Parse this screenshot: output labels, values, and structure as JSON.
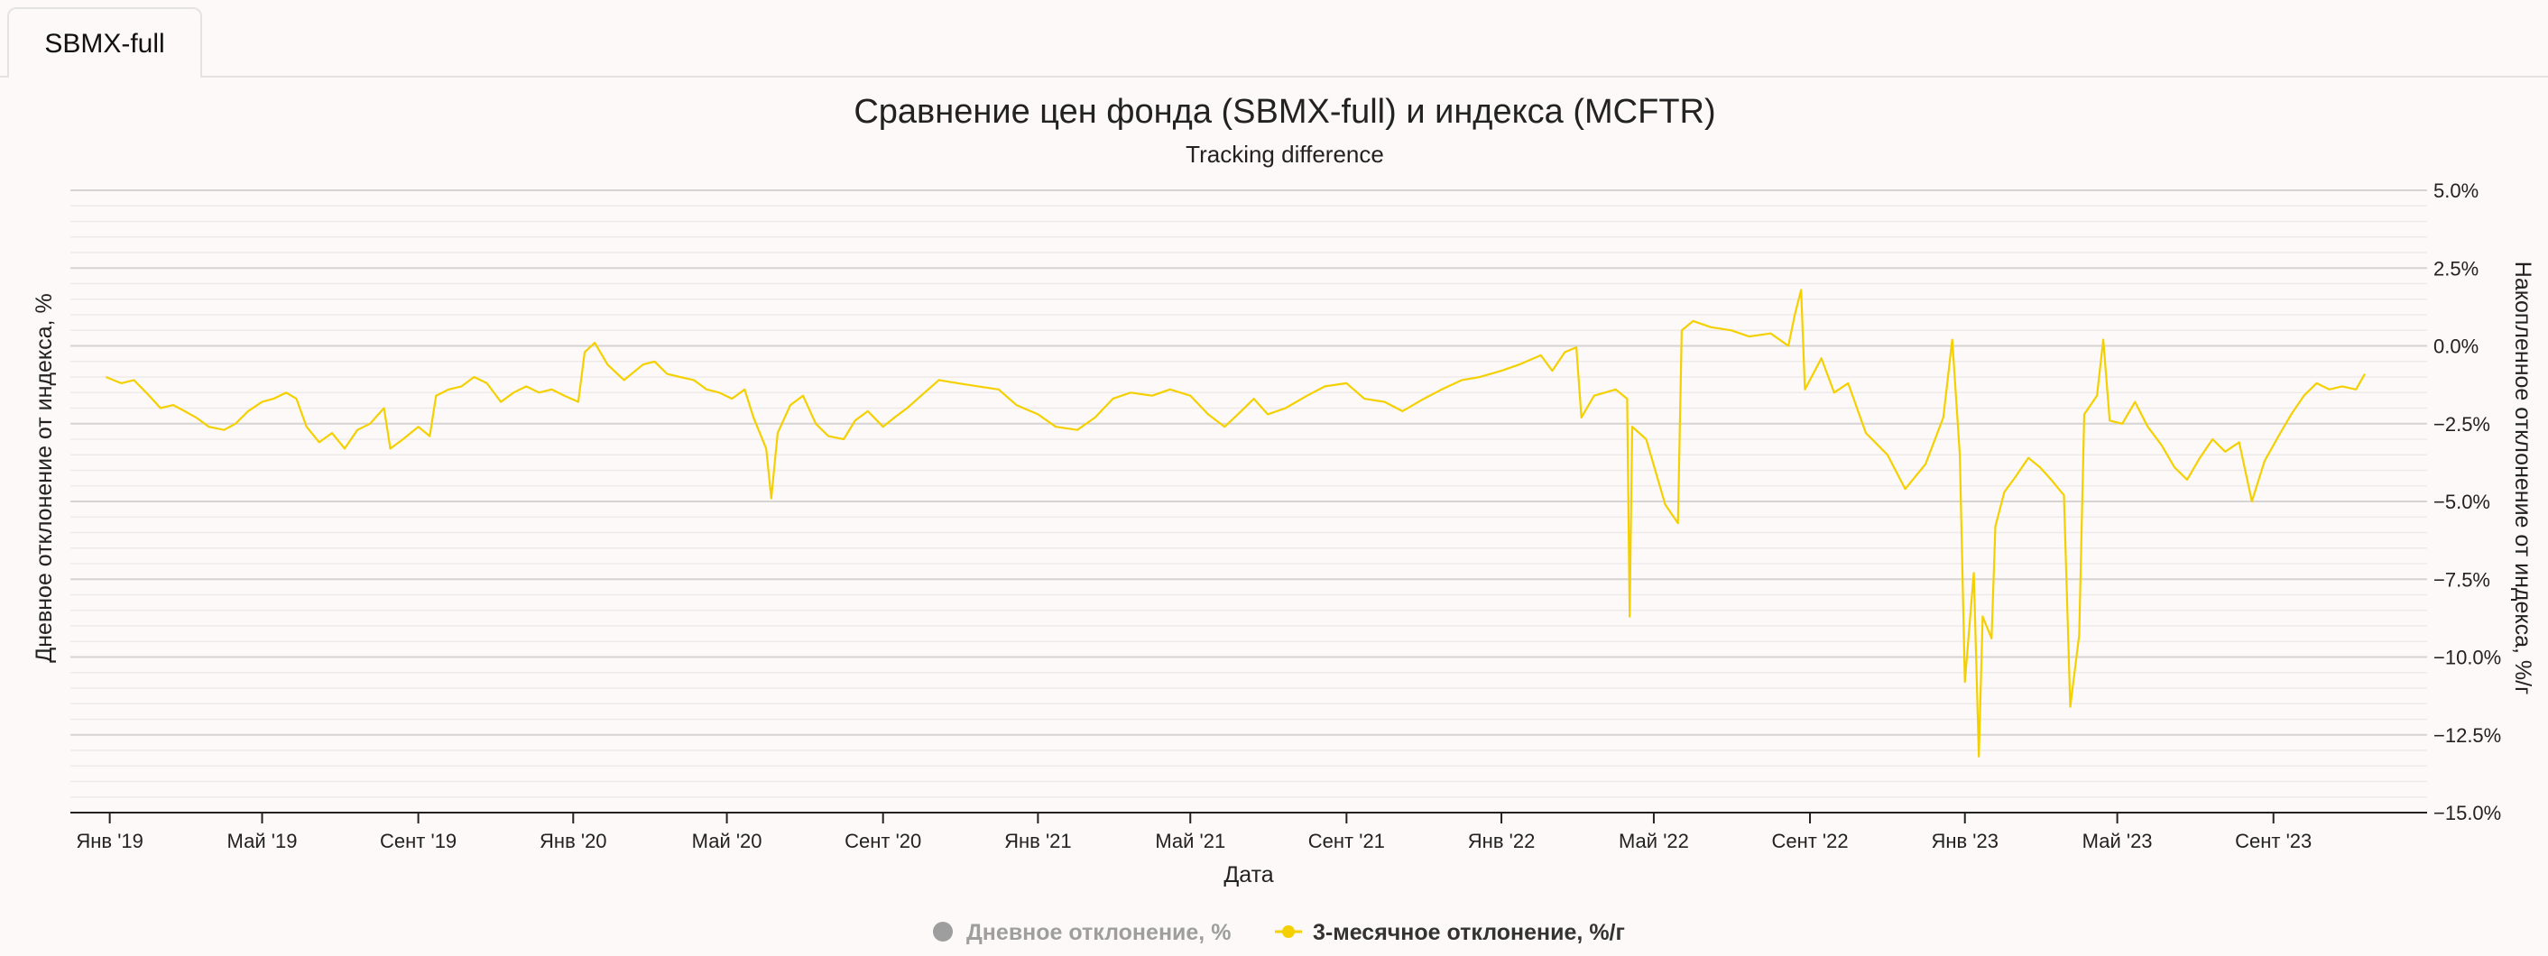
{
  "tabs": [
    {
      "label": "SBMX-full"
    }
  ],
  "chart_data": {
    "type": "line",
    "title": "Сравнение цен фонда (SBMX-full) и индекса (MCFTR)",
    "subtitle": "Tracking difference",
    "xlabel": "Дата",
    "ylabel_left": "Дневное отклонение от индекса, %",
    "ylabel_right": "Накопленное отклонение от индекса, %/г",
    "ylim": [
      -15,
      5
    ],
    "y_ticks": [
      "5.0%",
      "2.5%",
      "0.0%",
      "−2.5%",
      "−5.0%",
      "−7.5%",
      "−10.0%",
      "−12.5%",
      "−15.0%"
    ],
    "y_tick_values": [
      5,
      2.5,
      0,
      -2.5,
      -5,
      -7.5,
      -10,
      -12.5,
      -15
    ],
    "x_ticks": [
      "Янв '19",
      "Май '19",
      "Сент '19",
      "Янв '20",
      "Май '20",
      "Сент '20",
      "Янв '21",
      "Май '21",
      "Сент '21",
      "Янв '22",
      "Май '22",
      "Сент '22",
      "Янв '23",
      "Май '23",
      "Сент '23"
    ],
    "x_tick_dates": [
      "2019-01-01",
      "2019-05-01",
      "2019-09-01",
      "2020-01-01",
      "2020-05-01",
      "2020-09-01",
      "2021-01-01",
      "2021-05-01",
      "2021-09-01",
      "2022-01-01",
      "2022-05-01",
      "2022-09-01",
      "2023-01-01",
      "2023-05-01",
      "2023-09-01"
    ],
    "x_range": [
      "2018-12-01",
      "2023-12-31"
    ],
    "grid": true,
    "legend_placement": "bottom-center",
    "series": [
      {
        "name": "Дневное отклонение, %",
        "color": "#9e9e9e",
        "visible": false,
        "points": []
      },
      {
        "name": "3-месячное отклонение, %/г",
        "color": "#f5d000",
        "visible": true,
        "points": [
          [
            "2018-12-29",
            -1.0
          ],
          [
            "2019-01-10",
            -1.2
          ],
          [
            "2019-01-20",
            -1.1
          ],
          [
            "2019-02-01",
            -1.6
          ],
          [
            "2019-02-10",
            -2.0
          ],
          [
            "2019-02-20",
            -1.9
          ],
          [
            "2019-03-01",
            -2.1
          ],
          [
            "2019-03-10",
            -2.3
          ],
          [
            "2019-03-20",
            -2.6
          ],
          [
            "2019-04-01",
            -2.7
          ],
          [
            "2019-04-10",
            -2.5
          ],
          [
            "2019-04-20",
            -2.1
          ],
          [
            "2019-05-01",
            -1.8
          ],
          [
            "2019-05-10",
            -1.7
          ],
          [
            "2019-05-20",
            -1.5
          ],
          [
            "2019-05-28",
            -1.7
          ],
          [
            "2019-06-05",
            -2.6
          ],
          [
            "2019-06-15",
            -3.1
          ],
          [
            "2019-06-25",
            -2.8
          ],
          [
            "2019-07-05",
            -3.3
          ],
          [
            "2019-07-15",
            -2.7
          ],
          [
            "2019-07-25",
            -2.5
          ],
          [
            "2019-08-05",
            -2.0
          ],
          [
            "2019-08-10",
            -3.3
          ],
          [
            "2019-08-20",
            -3.0
          ],
          [
            "2019-09-01",
            -2.6
          ],
          [
            "2019-09-10",
            -2.9
          ],
          [
            "2019-09-15",
            -1.6
          ],
          [
            "2019-09-25",
            -1.4
          ],
          [
            "2019-10-05",
            -1.3
          ],
          [
            "2019-10-15",
            -1.0
          ],
          [
            "2019-10-25",
            -1.2
          ],
          [
            "2019-11-05",
            -1.8
          ],
          [
            "2019-11-15",
            -1.5
          ],
          [
            "2019-11-25",
            -1.3
          ],
          [
            "2019-12-05",
            -1.5
          ],
          [
            "2019-12-15",
            -1.4
          ],
          [
            "2019-12-25",
            -1.6
          ],
          [
            "2020-01-05",
            -1.8
          ],
          [
            "2020-01-10",
            -0.2
          ],
          [
            "2020-01-18",
            0.1
          ],
          [
            "2020-01-28",
            -0.6
          ],
          [
            "2020-02-10",
            -1.1
          ],
          [
            "2020-02-25",
            -0.6
          ],
          [
            "2020-03-05",
            -0.5
          ],
          [
            "2020-03-15",
            -0.9
          ],
          [
            "2020-03-25",
            -1.0
          ],
          [
            "2020-04-05",
            -1.1
          ],
          [
            "2020-04-15",
            -1.4
          ],
          [
            "2020-04-25",
            -1.5
          ],
          [
            "2020-05-05",
            -1.7
          ],
          [
            "2020-05-15",
            -1.4
          ],
          [
            "2020-05-22",
            -2.3
          ],
          [
            "2020-06-01",
            -3.3
          ],
          [
            "2020-06-05",
            -4.9
          ],
          [
            "2020-06-10",
            -2.8
          ],
          [
            "2020-06-20",
            -1.9
          ],
          [
            "2020-06-30",
            -1.6
          ],
          [
            "2020-07-10",
            -2.5
          ],
          [
            "2020-07-20",
            -2.9
          ],
          [
            "2020-08-01",
            -3.0
          ],
          [
            "2020-08-10",
            -2.4
          ],
          [
            "2020-08-20",
            -2.1
          ],
          [
            "2020-09-01",
            -2.6
          ],
          [
            "2020-09-10",
            -2.3
          ],
          [
            "2020-09-20",
            -2.0
          ],
          [
            "2020-10-01",
            -1.6
          ],
          [
            "2020-10-15",
            -1.1
          ],
          [
            "2020-10-30",
            -1.2
          ],
          [
            "2020-11-15",
            -1.3
          ],
          [
            "2020-12-01",
            -1.4
          ],
          [
            "2020-12-15",
            -1.9
          ],
          [
            "2021-01-01",
            -2.2
          ],
          [
            "2021-01-15",
            -2.6
          ],
          [
            "2021-02-01",
            -2.7
          ],
          [
            "2021-02-15",
            -2.3
          ],
          [
            "2021-03-01",
            -1.7
          ],
          [
            "2021-03-15",
            -1.5
          ],
          [
            "2021-04-01",
            -1.6
          ],
          [
            "2021-04-15",
            -1.4
          ],
          [
            "2021-05-01",
            -1.6
          ],
          [
            "2021-05-15",
            -2.2
          ],
          [
            "2021-05-28",
            -2.6
          ],
          [
            "2021-06-10",
            -2.1
          ],
          [
            "2021-06-20",
            -1.7
          ],
          [
            "2021-07-01",
            -2.2
          ],
          [
            "2021-07-15",
            -2.0
          ],
          [
            "2021-08-01",
            -1.6
          ],
          [
            "2021-08-15",
            -1.3
          ],
          [
            "2021-09-01",
            -1.2
          ],
          [
            "2021-09-15",
            -1.7
          ],
          [
            "2021-10-01",
            -1.8
          ],
          [
            "2021-10-15",
            -2.1
          ],
          [
            "2021-11-01",
            -1.7
          ],
          [
            "2021-11-15",
            -1.4
          ],
          [
            "2021-12-01",
            -1.1
          ],
          [
            "2021-12-15",
            -1.0
          ],
          [
            "2022-01-01",
            -0.8
          ],
          [
            "2022-01-15",
            -0.6
          ],
          [
            "2022-02-01",
            -0.3
          ],
          [
            "2022-02-10",
            -0.8
          ],
          [
            "2022-02-20",
            -0.2
          ],
          [
            "2022-03-01",
            -0.05
          ],
          [
            "2022-03-05",
            -2.3
          ],
          [
            "2022-03-15",
            -1.6
          ],
          [
            "2022-04-01",
            -1.4
          ],
          [
            "2022-04-10",
            -1.7
          ],
          [
            "2022-04-12",
            -8.7
          ],
          [
            "2022-04-14",
            -2.6
          ],
          [
            "2022-04-25",
            -3.0
          ],
          [
            "2022-05-10",
            -5.1
          ],
          [
            "2022-05-20",
            -5.7
          ],
          [
            "2022-05-23",
            0.5
          ],
          [
            "2022-06-01",
            0.8
          ],
          [
            "2022-06-15",
            0.6
          ],
          [
            "2022-07-01",
            0.5
          ],
          [
            "2022-07-15",
            0.3
          ],
          [
            "2022-08-01",
            0.4
          ],
          [
            "2022-08-15",
            0.0
          ],
          [
            "2022-08-20",
            1.0
          ],
          [
            "2022-08-25",
            1.8
          ],
          [
            "2022-08-28",
            -1.4
          ],
          [
            "2022-09-10",
            -0.4
          ],
          [
            "2022-09-20",
            -1.5
          ],
          [
            "2022-10-01",
            -1.2
          ],
          [
            "2022-10-15",
            -2.8
          ],
          [
            "2022-11-01",
            -3.5
          ],
          [
            "2022-11-15",
            -4.6
          ],
          [
            "2022-12-01",
            -3.8
          ],
          [
            "2022-12-15",
            -2.3
          ],
          [
            "2022-12-22",
            0.2
          ],
          [
            "2022-12-28",
            -3.5
          ],
          [
            "2023-01-01",
            -10.8
          ],
          [
            "2023-01-08",
            -7.3
          ],
          [
            "2023-01-12",
            -13.2
          ],
          [
            "2023-01-15",
            -8.7
          ],
          [
            "2023-01-22",
            -9.4
          ],
          [
            "2023-01-25",
            -5.8
          ],
          [
            "2023-02-01",
            -4.7
          ],
          [
            "2023-02-10",
            -4.2
          ],
          [
            "2023-02-20",
            -3.6
          ],
          [
            "2023-03-01",
            -3.9
          ],
          [
            "2023-03-10",
            -4.3
          ],
          [
            "2023-03-20",
            -4.8
          ],
          [
            "2023-03-25",
            -11.6
          ],
          [
            "2023-04-01",
            -9.3
          ],
          [
            "2023-04-05",
            -2.2
          ],
          [
            "2023-04-15",
            -1.6
          ],
          [
            "2023-04-20",
            0.2
          ],
          [
            "2023-04-25",
            -2.4
          ],
          [
            "2023-05-05",
            -2.5
          ],
          [
            "2023-05-15",
            -1.8
          ],
          [
            "2023-05-25",
            -2.6
          ],
          [
            "2023-06-05",
            -3.2
          ],
          [
            "2023-06-15",
            -3.9
          ],
          [
            "2023-06-25",
            -4.3
          ],
          [
            "2023-07-05",
            -3.6
          ],
          [
            "2023-07-15",
            -3.0
          ],
          [
            "2023-07-25",
            -3.4
          ],
          [
            "2023-08-05",
            -3.1
          ],
          [
            "2023-08-15",
            -5.0
          ],
          [
            "2023-08-25",
            -3.7
          ],
          [
            "2023-09-05",
            -2.9
          ],
          [
            "2023-09-15",
            -2.2
          ],
          [
            "2023-09-25",
            -1.6
          ],
          [
            "2023-10-05",
            -1.2
          ],
          [
            "2023-10-15",
            -1.4
          ],
          [
            "2023-10-25",
            -1.3
          ],
          [
            "2023-11-05",
            -1.4
          ],
          [
            "2023-11-12",
            -0.9
          ]
        ]
      }
    ]
  }
}
